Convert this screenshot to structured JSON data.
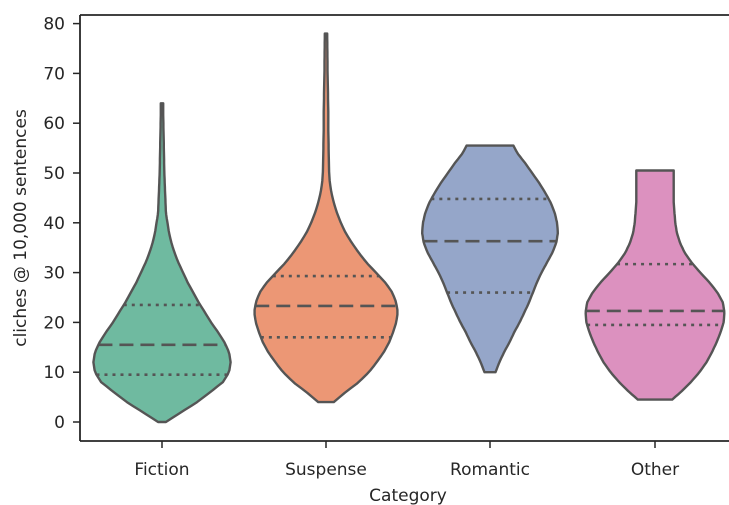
{
  "chart_data": {
    "type": "violin",
    "xlabel": "Category",
    "ylabel": "cliches @ 10,000 sentences",
    "ylim": [
      -4,
      82
    ],
    "yticks": [
      0,
      10,
      20,
      30,
      40,
      50,
      60,
      70,
      80
    ],
    "categories": [
      "Fiction",
      "Suspense",
      "Romantic",
      "Other"
    ],
    "colors": [
      "#6fbaa0",
      "#ec9775",
      "#95a6c9",
      "#dc91bf"
    ],
    "inner": "quartile",
    "violins": [
      {
        "category": "Fiction",
        "min": 0,
        "max": 64,
        "q1": 9.5,
        "median": 15.5,
        "q3": 23.5,
        "profile": [
          [
            0,
            0.05
          ],
          [
            2,
            0.25
          ],
          [
            4,
            0.45
          ],
          [
            6,
            0.62
          ],
          [
            8,
            0.78
          ],
          [
            10,
            0.86
          ],
          [
            12,
            0.88
          ],
          [
            14,
            0.86
          ],
          [
            16,
            0.8
          ],
          [
            18,
            0.72
          ],
          [
            20,
            0.63
          ],
          [
            22,
            0.55
          ],
          [
            24,
            0.47
          ],
          [
            26,
            0.4
          ],
          [
            28,
            0.33
          ],
          [
            30,
            0.27
          ],
          [
            32,
            0.21
          ],
          [
            34,
            0.16
          ],
          [
            36,
            0.12
          ],
          [
            38,
            0.09
          ],
          [
            40,
            0.07
          ],
          [
            42,
            0.05
          ],
          [
            44,
            0.045
          ],
          [
            46,
            0.04
          ],
          [
            48,
            0.035
          ],
          [
            50,
            0.03
          ],
          [
            54,
            0.025
          ],
          [
            58,
            0.02
          ],
          [
            62,
            0.015
          ],
          [
            64,
            0.015
          ]
        ]
      },
      {
        "category": "Suspense",
        "min": 4,
        "max": 78,
        "q1": 17,
        "median": 23.3,
        "q3": 29.3,
        "profile": [
          [
            4,
            0.1
          ],
          [
            6,
            0.25
          ],
          [
            8,
            0.42
          ],
          [
            10,
            0.55
          ],
          [
            12,
            0.65
          ],
          [
            14,
            0.74
          ],
          [
            16,
            0.81
          ],
          [
            18,
            0.86
          ],
          [
            20,
            0.9
          ],
          [
            22,
            0.92
          ],
          [
            24,
            0.9
          ],
          [
            26,
            0.85
          ],
          [
            28,
            0.76
          ],
          [
            30,
            0.64
          ],
          [
            32,
            0.52
          ],
          [
            34,
            0.42
          ],
          [
            36,
            0.33
          ],
          [
            38,
            0.25
          ],
          [
            40,
            0.19
          ],
          [
            42,
            0.14
          ],
          [
            44,
            0.1
          ],
          [
            46,
            0.07
          ],
          [
            48,
            0.05
          ],
          [
            50,
            0.04
          ],
          [
            54,
            0.035
          ],
          [
            58,
            0.03
          ],
          [
            62,
            0.03
          ],
          [
            66,
            0.025
          ],
          [
            70,
            0.02
          ],
          [
            74,
            0.018
          ],
          [
            78,
            0.015
          ]
        ]
      },
      {
        "category": "Romantic",
        "min": 10,
        "max": 55.5,
        "q1": 26,
        "median": 36.3,
        "q3": 44.8,
        "profile": [
          [
            10,
            0.07
          ],
          [
            12,
            0.12
          ],
          [
            14,
            0.18
          ],
          [
            16,
            0.25
          ],
          [
            18,
            0.31
          ],
          [
            20,
            0.38
          ],
          [
            22,
            0.44
          ],
          [
            24,
            0.5
          ],
          [
            26,
            0.55
          ],
          [
            28,
            0.6
          ],
          [
            30,
            0.66
          ],
          [
            32,
            0.73
          ],
          [
            34,
            0.8
          ],
          [
            36,
            0.85
          ],
          [
            38,
            0.87
          ],
          [
            40,
            0.86
          ],
          [
            42,
            0.83
          ],
          [
            44,
            0.78
          ],
          [
            46,
            0.71
          ],
          [
            48,
            0.63
          ],
          [
            50,
            0.54
          ],
          [
            52,
            0.45
          ],
          [
            54,
            0.35
          ],
          [
            55.5,
            0.3
          ]
        ]
      },
      {
        "category": "Other",
        "min": 4.5,
        "max": 50.5,
        "q1": 19.5,
        "median": 22.3,
        "q3": 31.7,
        "profile": [
          [
            4.5,
            0.22
          ],
          [
            6,
            0.33
          ],
          [
            8,
            0.46
          ],
          [
            10,
            0.57
          ],
          [
            12,
            0.66
          ],
          [
            14,
            0.73
          ],
          [
            16,
            0.79
          ],
          [
            18,
            0.84
          ],
          [
            20,
            0.88
          ],
          [
            22,
            0.89
          ],
          [
            24,
            0.87
          ],
          [
            26,
            0.8
          ],
          [
            28,
            0.7
          ],
          [
            30,
            0.58
          ],
          [
            32,
            0.47
          ],
          [
            34,
            0.38
          ],
          [
            36,
            0.32
          ],
          [
            38,
            0.28
          ],
          [
            40,
            0.26
          ],
          [
            42,
            0.25
          ],
          [
            44,
            0.24
          ],
          [
            46,
            0.24
          ],
          [
            48,
            0.24
          ],
          [
            50,
            0.24
          ],
          [
            50.5,
            0.24
          ]
        ]
      }
    ]
  }
}
